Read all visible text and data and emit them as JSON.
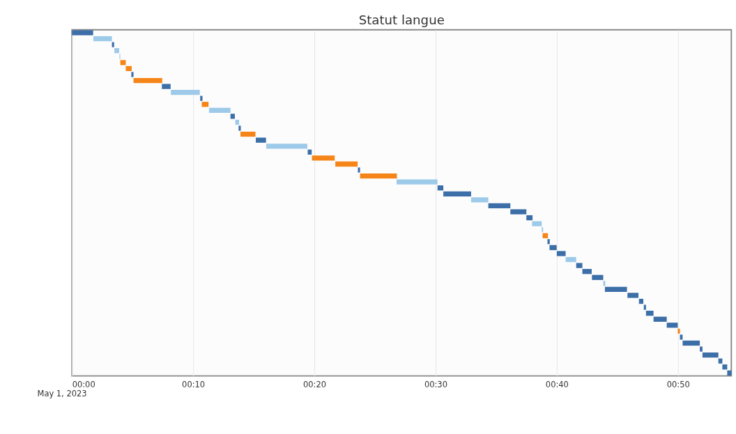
{
  "chart_data": {
    "type": "bar",
    "title": "Statut langue",
    "orientation": "horizontal",
    "categories": [
      null,
      null,
      null,
      null,
      null,
      null,
      null,
      null,
      null,
      null,
      null,
      null,
      null,
      null,
      null,
      null,
      null,
      null,
      null,
      null,
      null,
      null,
      null,
      null,
      null,
      null,
      null,
      null,
      null,
      null,
      null,
      null,
      null,
      null,
      null,
      null,
      null,
      null,
      null,
      null,
      null,
      null,
      null,
      null,
      null,
      null,
      null,
      null,
      null,
      null,
      null,
      null,
      null,
      null,
      null,
      null,
      null,
      null
    ],
    "base": [
      0,
      1.77,
      3.3,
      3.5,
      3.92,
      3.99,
      4.44,
      4.9,
      5.08,
      7.42,
      8.16,
      10.58,
      10.71,
      11.31,
      13.08,
      13.48,
      13.75,
      13.9,
      15.17,
      16.03,
      19.45,
      19.8,
      21.73,
      23.59,
      23.77,
      26.78,
      30.16,
      30.64,
      32.93,
      34.35,
      36.17,
      37.49,
      37.96,
      38.76,
      38.83,
      39.23,
      39.4,
      40.0,
      40.73,
      41.6,
      42.11,
      42.9,
      43.83,
      43.97,
      45.83,
      46.78,
      47.18,
      47.36,
      47.98,
      49.07,
      49.98,
      50.16,
      50.38,
      51.8,
      52.02,
      53.33,
      53.66,
      54.06
    ],
    "values": [
      1.75,
      1.53,
      0.18,
      0.4,
      0.07,
      0.45,
      0.49,
      0.18,
      2.37,
      0.72,
      2.39,
      0.19,
      0.56,
      1.77,
      0.36,
      0.31,
      0.18,
      1.24,
      0.84,
      3.39,
      0.33,
      1.88,
      1.84,
      0.18,
      3.04,
      3.38,
      0.48,
      2.29,
      1.42,
      1.82,
      1.32,
      0.51,
      0.8,
      0.11,
      0.44,
      0.19,
      0.59,
      0.73,
      0.87,
      0.51,
      0.77,
      0.93,
      0.17,
      1.82,
      0.91,
      0.36,
      0.18,
      0.62,
      1.09,
      0.91,
      0.18,
      0.22,
      1.42,
      0.22,
      1.31,
      0.33,
      0.4,
      0.34
    ],
    "colors": [
      "#3c6ea8",
      "#9ecae9",
      "#3c6ea8",
      "#9ecae9",
      "#9ecae9",
      "#f58518",
      "#f58518",
      "#3c6ea8",
      "#f58518",
      "#3c6ea8",
      "#9ecae9",
      "#3c6ea8",
      "#f58518",
      "#9ecae9",
      "#3c6ea8",
      "#9ecae9",
      "#3c6ea8",
      "#f58518",
      "#3c6ea8",
      "#9ecae9",
      "#3c6ea8",
      "#f58518",
      "#f58518",
      "#3c6ea8",
      "#f58518",
      "#9ecae9",
      "#3c6ea8",
      "#3c6ea8",
      "#9ecae9",
      "#3c6ea8",
      "#3c6ea8",
      "#3c6ea8",
      "#9ecae9",
      "#9ecae9",
      "#f58518",
      "#3c6ea8",
      "#3c6ea8",
      "#3c6ea8",
      "#9ecae9",
      "#3c6ea8",
      "#3c6ea8",
      "#3c6ea8",
      "#9ecae9",
      "#3c6ea8",
      "#3c6ea8",
      "#3c6ea8",
      "#3c6ea8",
      "#3c6ea8",
      "#3c6ea8",
      "#3c6ea8",
      "#f58518",
      "#3c6ea8",
      "#3c6ea8",
      "#3c6ea8",
      "#3c6ea8",
      "#3c6ea8",
      "#3c6ea8",
      "#3c6ea8"
    ],
    "xlim": [
      0,
      54.4
    ],
    "xticks": [
      {
        "value": 0,
        "label": "00:00"
      },
      {
        "value": 10,
        "label": "00:10"
      },
      {
        "value": 20,
        "label": "00:20"
      },
      {
        "value": 30,
        "label": "00:30"
      },
      {
        "value": 40,
        "label": "00:40"
      },
      {
        "value": 50,
        "label": "00:50"
      }
    ],
    "grid": "x",
    "tick_labels": "x",
    "annotations": [
      "May 1, 2023"
    ]
  }
}
